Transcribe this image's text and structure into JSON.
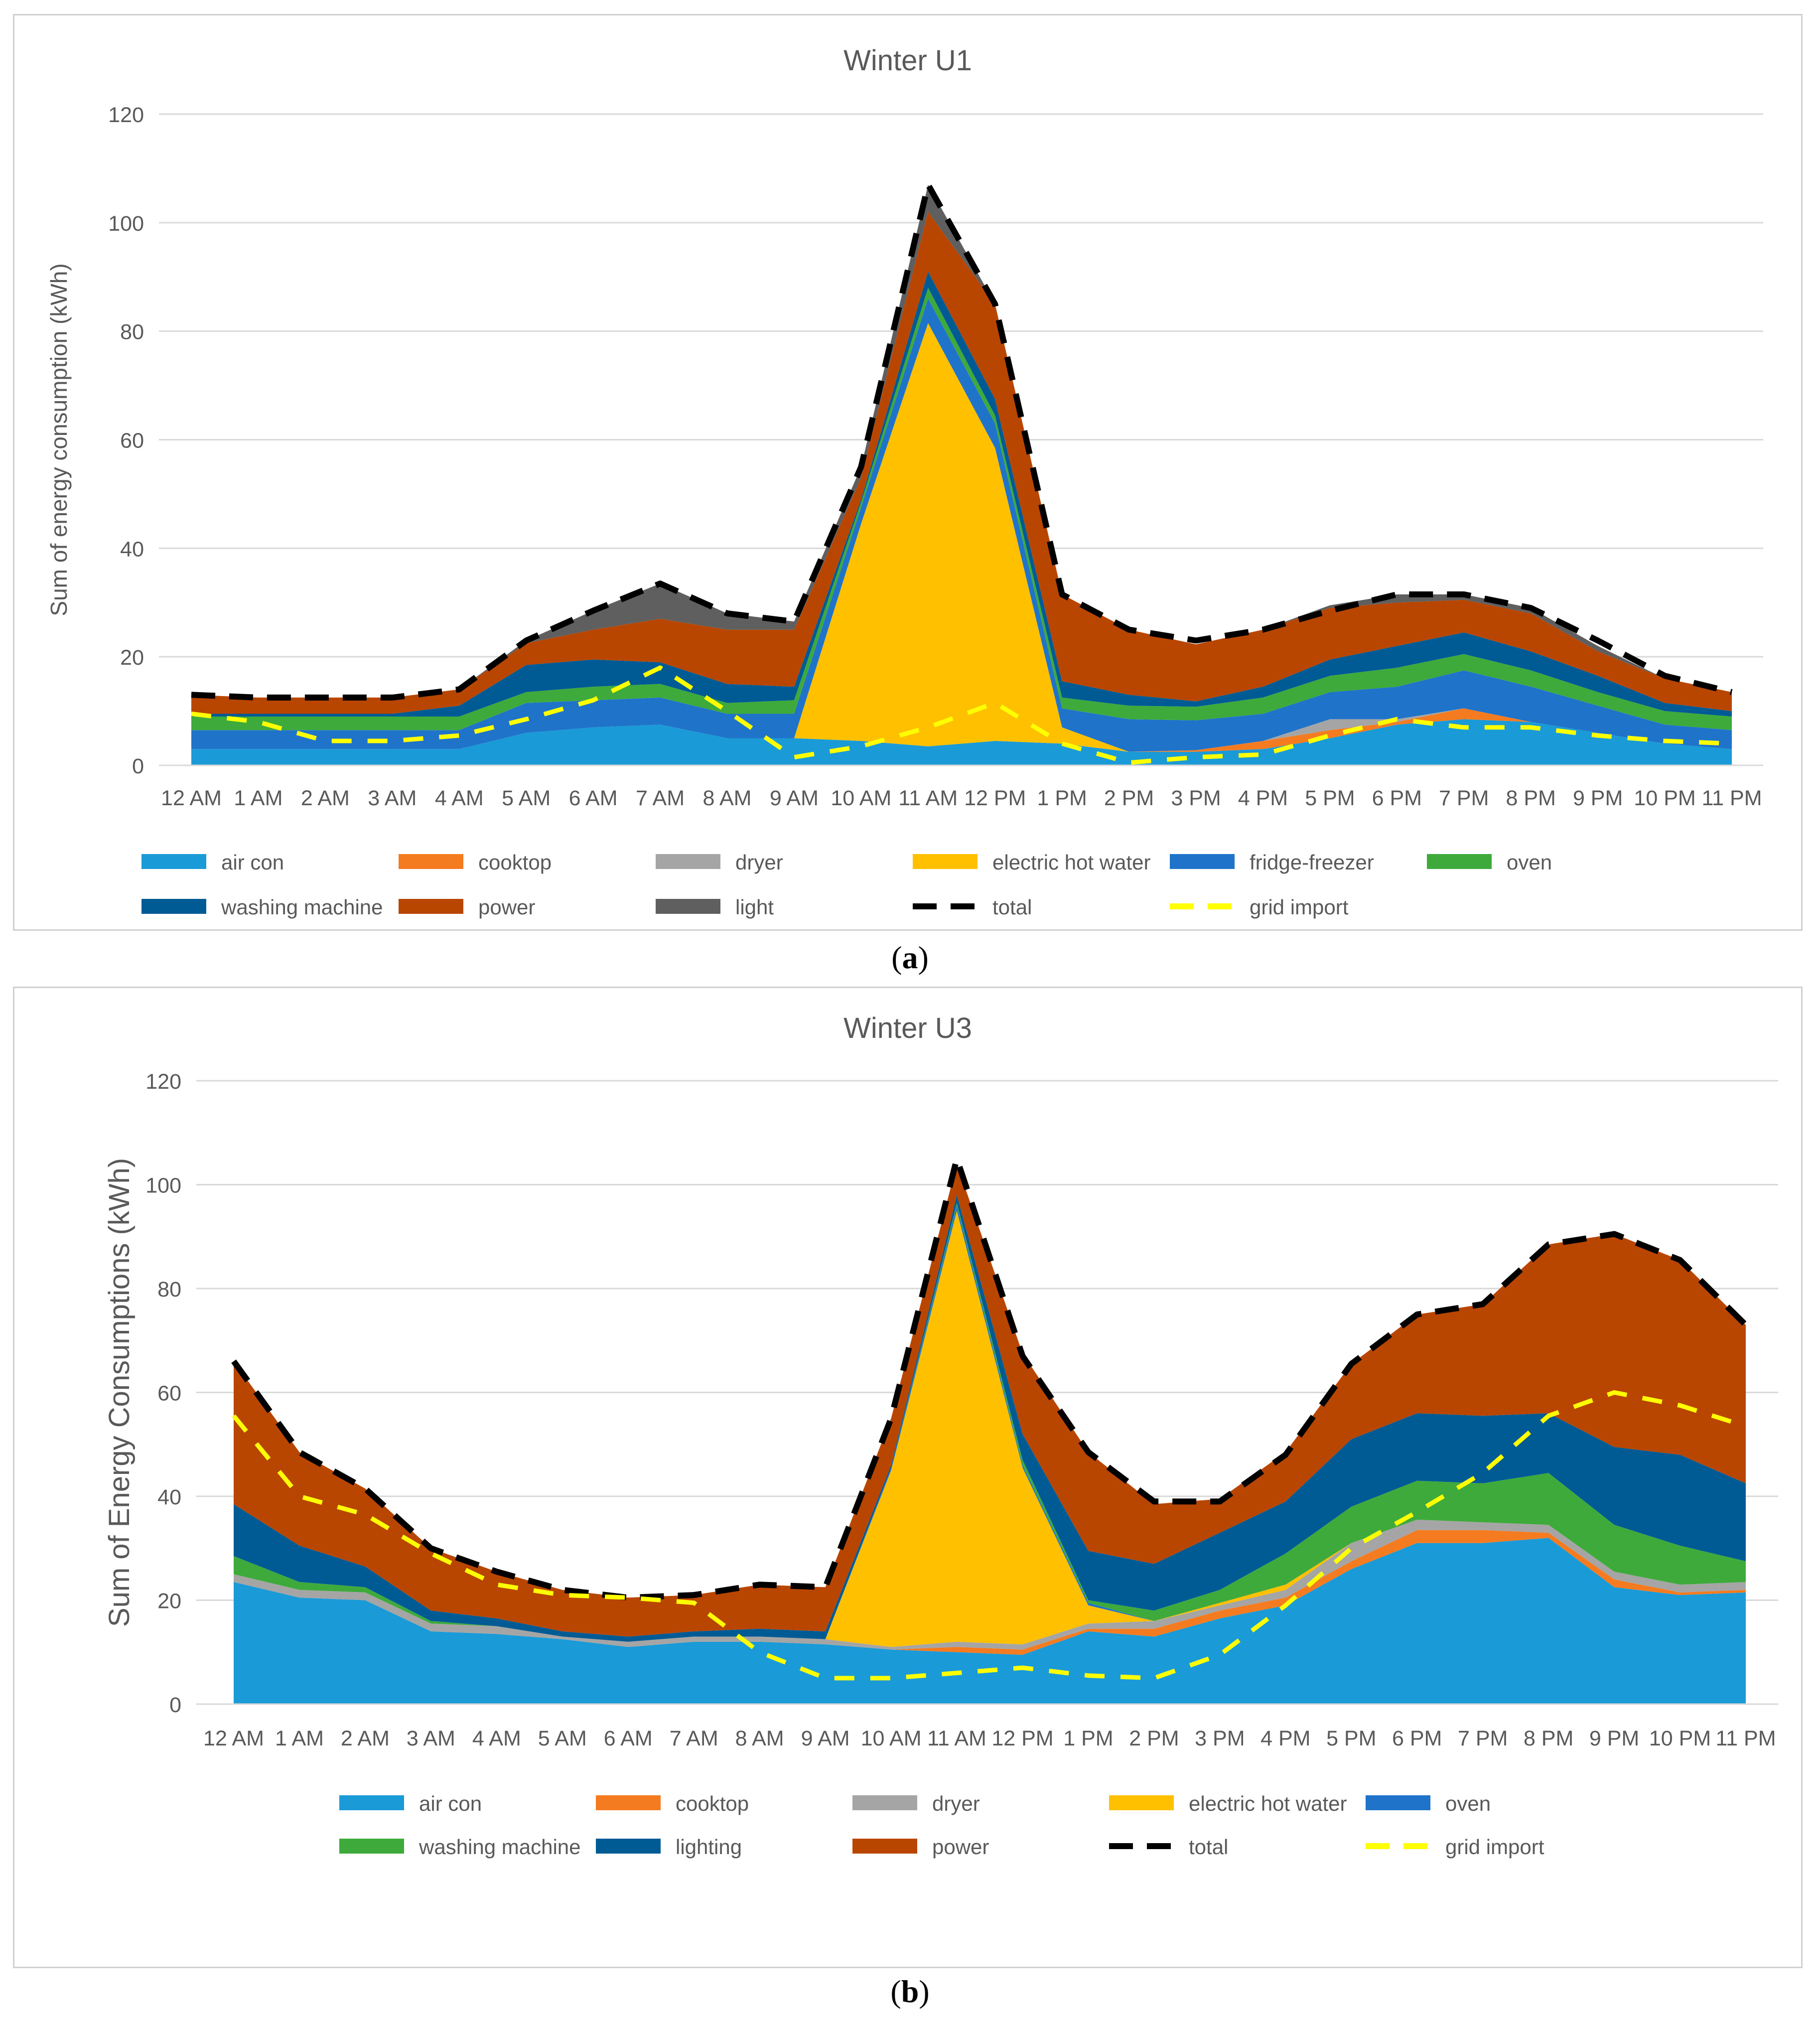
{
  "figure": {
    "caption_a": {
      "open": "(",
      "label": "a",
      "close": ")"
    },
    "caption_b": {
      "open": "(",
      "label": "b",
      "close": ")"
    }
  },
  "chart_data": [
    {
      "type": "area",
      "stacked": true,
      "title": "Winter U1",
      "xlabel": "",
      "ylabel": "Sum of energy consumption (kWh)",
      "ylim": [
        0,
        120
      ],
      "yticks": [
        0,
        20,
        40,
        60,
        80,
        100,
        120
      ],
      "grid": true,
      "legend_position": "bottom",
      "categories": [
        "12 AM",
        "1 AM",
        "2 AM",
        "3 AM",
        "4 AM",
        "5 AM",
        "6 AM",
        "7 AM",
        "8 AM",
        "9 AM",
        "10 AM",
        "11 AM",
        "12 PM",
        "1 PM",
        "2 PM",
        "3 PM",
        "4 PM",
        "5 PM",
        "6 PM",
        "7 PM",
        "8 PM",
        "9 PM",
        "10 PM",
        "11 PM"
      ],
      "series": [
        {
          "name": "air con",
          "color": "#1a9ad6",
          "values": [
            3,
            3,
            3,
            3,
            3,
            6,
            7,
            7.5,
            5,
            5,
            4.5,
            3.5,
            4.5,
            4,
            2.5,
            2.5,
            3,
            5,
            7.5,
            8.5,
            8,
            6,
            4,
            3
          ]
        },
        {
          "name": "cooktop",
          "color": "#f47b20",
          "values": [
            0,
            0,
            0,
            0,
            0,
            0,
            0,
            0,
            0,
            0,
            0,
            0,
            0,
            0,
            0,
            0.3,
            1.5,
            1.5,
            0.5,
            2,
            0,
            0,
            0,
            0
          ]
        },
        {
          "name": "dryer",
          "color": "#a5a5a5",
          "values": [
            0,
            0,
            0,
            0,
            0,
            0,
            0,
            0,
            0,
            0,
            0,
            0,
            0,
            0,
            0,
            0,
            0,
            2,
            0.5,
            0,
            0,
            0,
            0,
            0
          ]
        },
        {
          "name": "electric hot water",
          "color": "#ffc000",
          "values": [
            0,
            0,
            0,
            0,
            0,
            0,
            0,
            0,
            0,
            0,
            40,
            78,
            54,
            3,
            0,
            0,
            0,
            0,
            0,
            0,
            0,
            0,
            0,
            0
          ]
        },
        {
          "name": "fridge-freezer",
          "color": "#1f73c9",
          "values": [
            3.5,
            3.5,
            3.5,
            3.5,
            3.5,
            5.5,
            5,
            5,
            4.5,
            4.5,
            3,
            4.5,
            4.5,
            3.5,
            6,
            5.5,
            5,
            5,
            6,
            7,
            6.5,
            5,
            3.5,
            3.5
          ]
        },
        {
          "name": "oven",
          "color": "#3faa3c",
          "values": [
            2.5,
            2.5,
            2.5,
            2.5,
            2.5,
            2,
            2.5,
            2.5,
            2,
            2.5,
            1,
            2,
            1.5,
            2,
            2.5,
            2.5,
            3,
            3,
            3.5,
            3,
            3,
            2.5,
            2.5,
            2.5
          ]
        },
        {
          "name": "washing machine",
          "color": "#005a94",
          "values": [
            0.5,
            0.5,
            0.5,
            0.5,
            2,
            5,
            5,
            4,
            3.5,
            2.5,
            0.5,
            3,
            3,
            3,
            2,
            1,
            2,
            3,
            4,
            4,
            3.5,
            3,
            1.5,
            1
          ]
        },
        {
          "name": "power",
          "color": "#b84500",
          "values": [
            3.5,
            3,
            3,
            3,
            3,
            4,
            5.5,
            8,
            10,
            10.5,
            4,
            11,
            17.5,
            16,
            12,
            10.5,
            10.5,
            9.5,
            8,
            6,
            7,
            4.5,
            4.5,
            3.5
          ]
        },
        {
          "name": "light",
          "color": "#5f5f5f",
          "values": [
            0,
            0,
            0,
            0,
            0,
            0.5,
            3.5,
            6.5,
            3,
            1.5,
            2,
            5,
            0,
            0,
            0,
            0,
            0,
            0.5,
            1.5,
            1,
            1,
            1,
            0,
            0
          ]
        }
      ],
      "lines": [
        {
          "name": "total",
          "color": "#000000",
          "style": "dashed",
          "values": [
            13,
            12.5,
            12.5,
            12.5,
            14,
            23,
            28.5,
            33.5,
            28,
            26.5,
            55,
            107,
            85,
            31.5,
            25,
            23,
            25,
            28.5,
            31.5,
            31.5,
            29,
            23,
            16.5,
            13.5
          ]
        },
        {
          "name": "grid import",
          "color": "#ffff00",
          "style": "dashed",
          "values": [
            9.5,
            8,
            4.5,
            4.5,
            5.5,
            8.5,
            12,
            18,
            10,
            1.5,
            3.5,
            7,
            11.5,
            4,
            0.5,
            1.5,
            2,
            5.5,
            8.5,
            7,
            7,
            5.5,
            4.5,
            4
          ]
        }
      ],
      "legend_order": [
        "air con",
        "cooktop",
        "dryer",
        "electric hot water",
        "fridge-freezer",
        "oven",
        "washing machine",
        "power",
        "light",
        "total",
        "grid import"
      ]
    },
    {
      "type": "area",
      "stacked": true,
      "title": "Winter U3",
      "xlabel": "",
      "ylabel": "Sum of Energy Consumptions (kWh)",
      "ylim": [
        0,
        120
      ],
      "yticks": [
        0,
        20,
        40,
        60,
        80,
        100,
        120
      ],
      "grid": true,
      "legend_position": "bottom",
      "categories": [
        "12 AM",
        "1 AM",
        "2 AM",
        "3 AM",
        "4 AM",
        "5 AM",
        "6 AM",
        "7 AM",
        "8 AM",
        "9 AM",
        "10 AM",
        "11 AM",
        "12 PM",
        "1 PM",
        "2 PM",
        "3 PM",
        "4 PM",
        "5 PM",
        "6 PM",
        "7 PM",
        "8 PM",
        "9 PM",
        "10 PM",
        "11 PM"
      ],
      "series": [
        {
          "name": "air con",
          "color": "#1a9ad6",
          "values": [
            23.5,
            20.5,
            20,
            14,
            13.5,
            12.5,
            11,
            12,
            12,
            11.5,
            10.5,
            10,
            9.5,
            14,
            13,
            16.5,
            19,
            26,
            31,
            31,
            32,
            22.5,
            21,
            21.5
          ]
        },
        {
          "name": "cooktop",
          "color": "#f47b20",
          "values": [
            0,
            0,
            0,
            0,
            0,
            0,
            0,
            0,
            0,
            0,
            0,
            1,
            1,
            0.5,
            1.5,
            1.5,
            1.5,
            1.5,
            2.5,
            2.5,
            1,
            1.5,
            0.5,
            0.5
          ]
        },
        {
          "name": "dryer",
          "color": "#a5a5a5",
          "values": [
            1.5,
            1.5,
            1.5,
            1.5,
            1.5,
            0.5,
            1,
            1,
            1,
            1,
            0.5,
            1,
            1,
            1,
            1.5,
            1,
            1.5,
            3.5,
            2,
            1.5,
            1.5,
            1.5,
            1.5,
            1.5
          ]
        },
        {
          "name": "electric hot water",
          "color": "#ffc000",
          "values": [
            0,
            0,
            0,
            0,
            0,
            0,
            0,
            0,
            0,
            0,
            34,
            83,
            34,
            3.5,
            0,
            0.5,
            1,
            0,
            0,
            0,
            0,
            0,
            0,
            0
          ]
        },
        {
          "name": "oven",
          "color": "#1f73c9",
          "values": [
            0,
            0,
            0,
            0,
            0,
            0,
            0,
            0,
            0,
            0,
            0.5,
            1,
            0.5,
            0.5,
            0,
            0,
            0,
            0,
            0,
            0,
            0,
            0,
            0,
            0
          ]
        },
        {
          "name": "washing machine",
          "color": "#3faa3c",
          "values": [
            3.5,
            1.5,
            1,
            0.5,
            0,
            0,
            0,
            0,
            0,
            0,
            0,
            0.5,
            1,
            0.5,
            2,
            2.5,
            6,
            7,
            7.5,
            7.5,
            10,
            9,
            7.5,
            4
          ]
        },
        {
          "name": "lighting",
          "color": "#005a94",
          "values": [
            10,
            7,
            4,
            2,
            1.5,
            1,
            1,
            1,
            1.5,
            1.5,
            0.5,
            1.5,
            5,
            9.5,
            9,
            11,
            10,
            13,
            13,
            13,
            11.5,
            15,
            17.5,
            15
          ]
        },
        {
          "name": "power",
          "color": "#b84500",
          "values": [
            27.5,
            18,
            15,
            12,
            9,
            8,
            7.5,
            7,
            8.5,
            8.5,
            9,
            6,
            15.5,
            19,
            11.5,
            6.5,
            9.5,
            14.5,
            19,
            21.5,
            32.5,
            41,
            37.5,
            30.5
          ]
        }
      ],
      "lines": [
        {
          "name": "total",
          "color": "#000000",
          "style": "dashed",
          "values": [
            66,
            48.5,
            41.5,
            30,
            25.5,
            22,
            20.5,
            21,
            23,
            22.5,
            55,
            105,
            67,
            48.5,
            39,
            39,
            48,
            65.5,
            75,
            77,
            88.5,
            90.5,
            85.5,
            73
          ]
        },
        {
          "name": "grid import",
          "color": "#ffff00",
          "style": "dashed",
          "values": [
            55.5,
            40,
            36.5,
            29,
            23,
            21,
            20.5,
            19.5,
            10,
            5,
            5,
            6,
            7,
            5.5,
            5,
            9.5,
            19,
            30,
            37,
            44.5,
            55.5,
            60,
            57.5,
            53.5
          ]
        }
      ],
      "legend_order": [
        "air con",
        "cooktop",
        "dryer",
        "electric hot water",
        "oven",
        "washing machine",
        "lighting",
        "power",
        "total",
        "grid import"
      ]
    }
  ]
}
